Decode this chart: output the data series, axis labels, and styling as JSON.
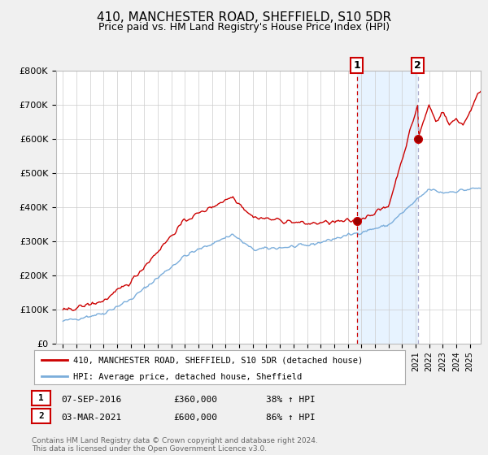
{
  "title": "410, MANCHESTER ROAD, SHEFFIELD, S10 5DR",
  "subtitle": "Price paid vs. HM Land Registry's House Price Index (HPI)",
  "legend_label_red": "410, MANCHESTER ROAD, SHEFFIELD, S10 5DR (detached house)",
  "legend_label_blue": "HPI: Average price, detached house, Sheffield",
  "annotation1_label": "1",
  "annotation1_date": "07-SEP-2016",
  "annotation1_price": "£360,000",
  "annotation1_hpi": "38% ↑ HPI",
  "annotation1_year": 2016.67,
  "annotation1_value": 360000,
  "annotation2_label": "2",
  "annotation2_date": "03-MAR-2021",
  "annotation2_price": "£600,000",
  "annotation2_hpi": "86% ↑ HPI",
  "annotation2_year": 2021.17,
  "annotation2_value": 600000,
  "ylim": [
    0,
    800000
  ],
  "xlim": [
    1994.5,
    2025.8
  ],
  "footer": "Contains HM Land Registry data © Crown copyright and database right 2024.\nThis data is licensed under the Open Government Licence v3.0.",
  "background_color": "#f0f0f0",
  "plot_background_color": "#ffffff",
  "red_color": "#cc0000",
  "blue_color": "#7aaddb",
  "shade_color": "#ddeeff",
  "grid_color": "#cccccc",
  "vline1_color": "#cc0000",
  "vline2_color": "#aaaacc"
}
